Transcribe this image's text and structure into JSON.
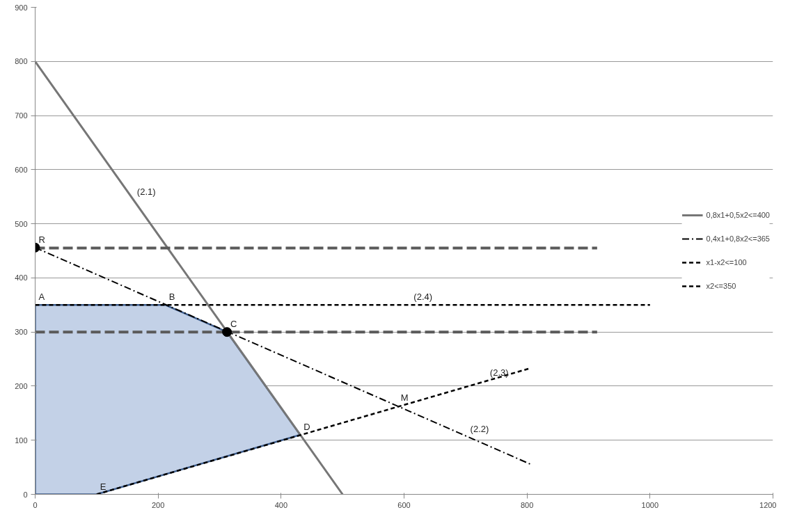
{
  "chart_data": {
    "type": "line",
    "xlim": [
      0,
      1200
    ],
    "xticks": [
      0,
      200,
      400,
      600,
      800,
      1000,
      1200
    ],
    "ylim": [
      0,
      900
    ],
    "yticks": [
      0,
      100,
      200,
      300,
      400,
      500,
      600,
      700,
      800,
      900
    ],
    "grid": "y",
    "legend": "right",
    "marker": "none",
    "series": [
      {
        "type": "area",
        "color": "#c3d1e7",
        "x": [
          0,
          0,
          212,
          312,
          431,
          100
        ],
        "values": [
          0,
          350,
          350,
          300,
          110,
          0
        ]
      },
      {
        "name": "0,8x1+0,5x2<=400",
        "color": "#767676",
        "line_style": "solid",
        "x": [
          0,
          500
        ],
        "values": [
          800,
          0
        ]
      },
      {
        "name": "0,4x1+0,8x2<=365",
        "color": "#000000",
        "line_style": "dashdot",
        "x": [
          0,
          805
        ],
        "values": [
          456,
          56
        ]
      },
      {
        "name": "x1-x2<=100",
        "color": "#000000",
        "line_style": "dashed",
        "x": [
          100,
          805
        ],
        "values": [
          0,
          233
        ]
      },
      {
        "name": "x2<=350",
        "color": "#000000",
        "line_style": "dashed",
        "x": [
          0,
          1000
        ],
        "values": [
          350,
          350
        ]
      },
      {
        "color": "#5a5a5a",
        "line_style": "longdash",
        "x": [
          0,
          914
        ],
        "values": [
          455,
          455
        ]
      },
      {
        "color": "#5a5a5a",
        "line_style": "longdash",
        "x": [
          0,
          914
        ],
        "values": [
          300,
          300
        ]
      },
      {
        "type": "scatter",
        "color": "#000000",
        "marker": "circle",
        "x": [
          0,
          312
        ],
        "values": [
          456,
          300
        ]
      }
    ],
    "annotations": [
      {
        "text": "R",
        "x": 0,
        "y": 456
      },
      {
        "text": "A",
        "x": 0,
        "y": 350
      },
      {
        "text": "B",
        "x": 212,
        "y": 350
      },
      {
        "text": "C",
        "x": 312,
        "y": 300
      },
      {
        "text": "D",
        "x": 431,
        "y": 110
      },
      {
        "text": "E",
        "x": 100,
        "y": 0
      },
      {
        "text": "M",
        "x": 589,
        "y": 164
      },
      {
        "text": "(2.1)",
        "x": 160,
        "y": 544
      },
      {
        "text": "(2.2)",
        "x": 702,
        "y": 106
      },
      {
        "text": "(2.3)",
        "x": 734,
        "y": 210
      },
      {
        "text": "(2.4)",
        "x": 610,
        "y": 350
      }
    ]
  }
}
